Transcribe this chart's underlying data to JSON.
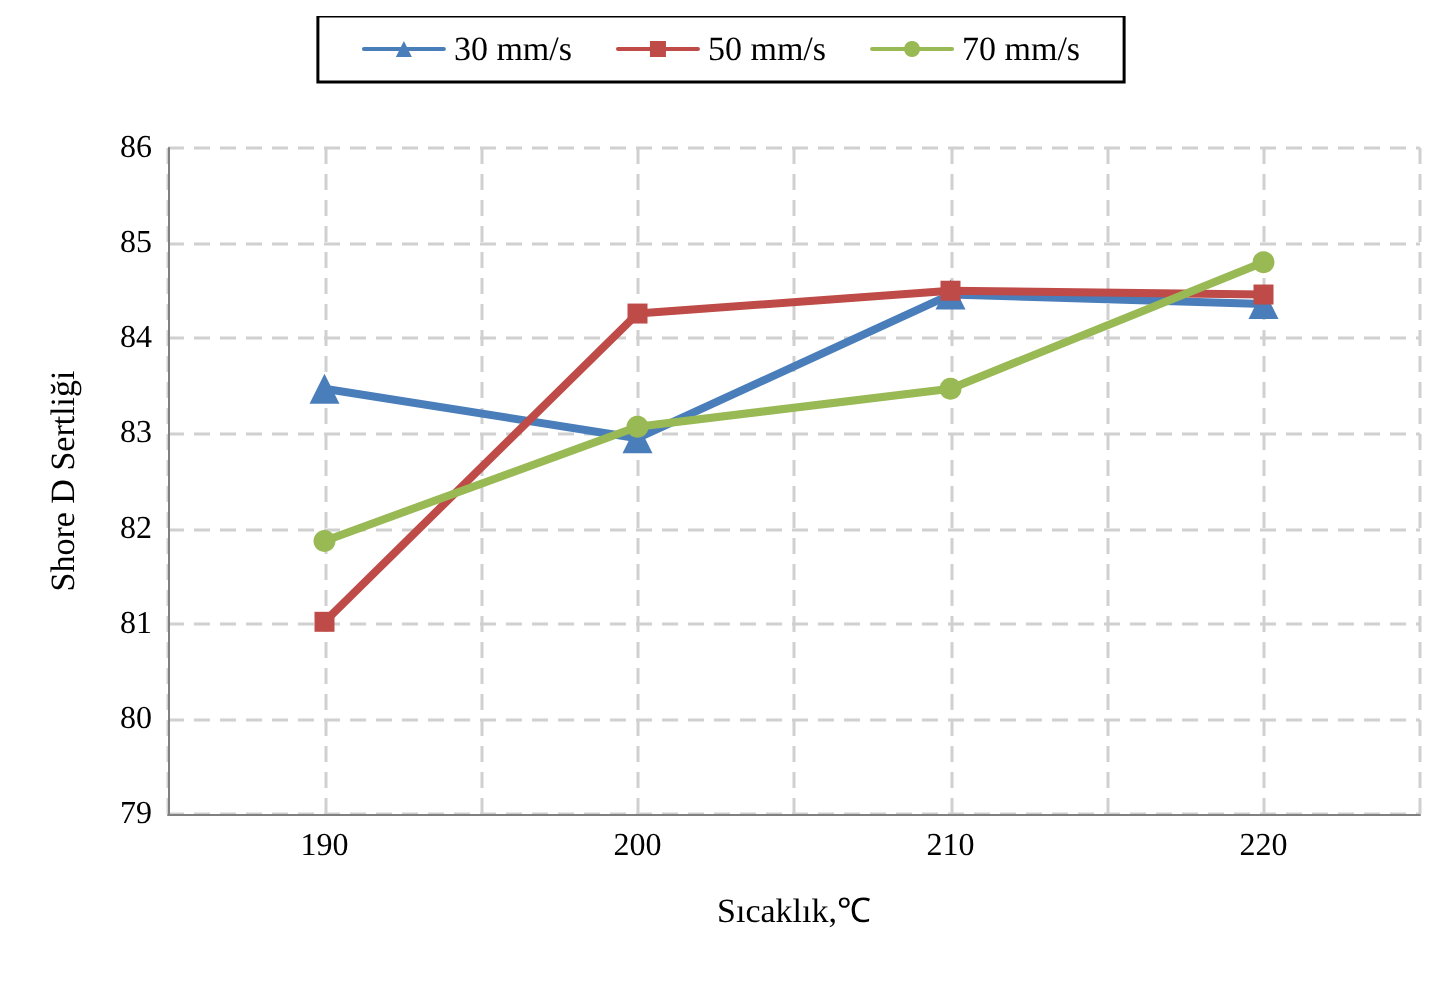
{
  "chart_data": {
    "type": "line",
    "xlabel": "Sıcaklık,℃",
    "ylabel": "Shore D Sertliği",
    "x": [
      190,
      200,
      210,
      220
    ],
    "xlim": [
      185,
      225
    ],
    "xticks": [
      {
        "value": 185,
        "label": null
      },
      190,
      {
        "value": 195,
        "label": null
      },
      200,
      {
        "value": 205,
        "label": null
      },
      210,
      {
        "value": 215,
        "label": null
      },
      220,
      {
        "value": 225,
        "label": null
      }
    ],
    "ylim": [
      79,
      86
    ],
    "yticks": [
      79,
      80,
      81,
      82,
      83,
      84,
      85,
      86
    ],
    "grid": true,
    "legend": "top",
    "line_style": "solid",
    "series": [
      {
        "name": "30 mm/s",
        "color": "#4a7ebb",
        "marker": "triangle",
        "values": [
          83.47,
          82.95,
          84.46,
          84.36
        ]
      },
      {
        "name": "50 mm/s",
        "color": "#be4b48",
        "marker": "square",
        "values": [
          81.02,
          84.26,
          84.5,
          84.46
        ]
      },
      {
        "name": "70 mm/s",
        "color": "#98b954",
        "marker": "circle",
        "values": [
          81.87,
          83.07,
          83.47,
          84.8
        ]
      }
    ]
  }
}
